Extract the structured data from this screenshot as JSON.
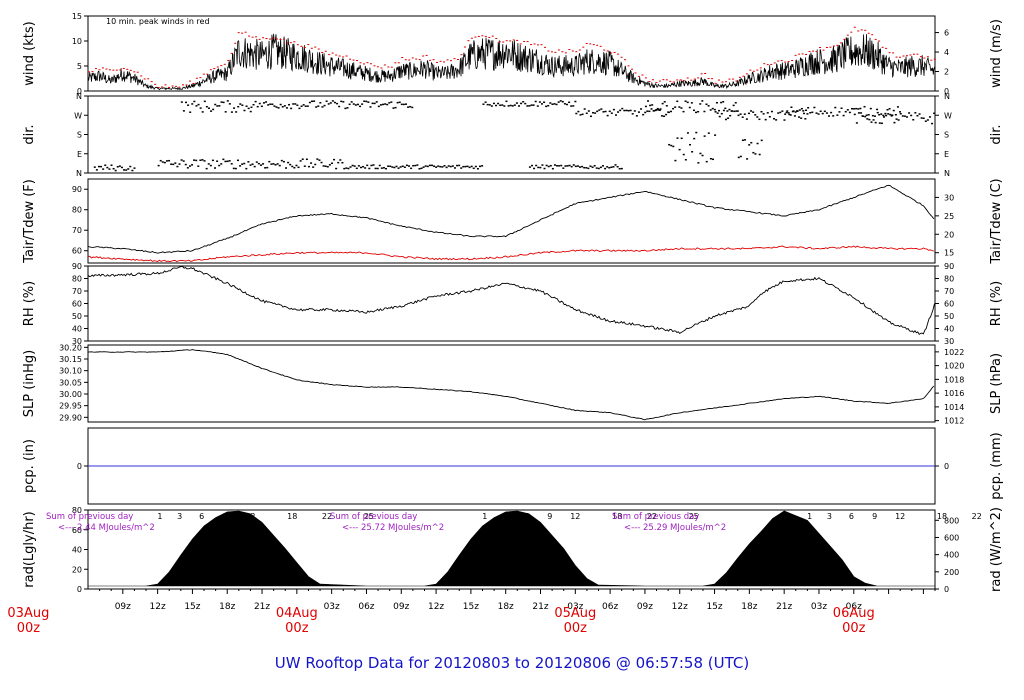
{
  "title": "UW Rooftop Data for 20120803  to  20120806 @ 06:57:58  (UTC)",
  "colors": {
    "title": "#1414c8",
    "date": "#e00000",
    "peak": "#e00000",
    "annot": "#a020c0",
    "pcp": "#3030e0",
    "dew": "#e00000"
  },
  "wind": {
    "ylabel_left": "wind (kts)",
    "ylabel_right": "wind (m/s)",
    "ticks_left": [
      "0",
      "5",
      "10",
      "15"
    ],
    "ticks_right": [
      "0",
      "2",
      "4",
      "6"
    ],
    "note": "10 min. peak winds in red"
  },
  "dir": {
    "ylabel_left": "dir.",
    "ylabel_right": "dir.",
    "ticks": [
      "N",
      "E",
      "S",
      "W",
      "N"
    ]
  },
  "temp": {
    "ylabel_left": "Tair/Tdew (F)",
    "ylabel_right": "Tair/Tdew (C)",
    "ticks_left": [
      "60",
      "70",
      "80",
      "90"
    ],
    "ticks_right": [
      "15",
      "20",
      "25",
      "30"
    ]
  },
  "rh": {
    "ylabel_left": "RH (%)",
    "ylabel_right": "RH (%)",
    "ticks": [
      "30",
      "40",
      "50",
      "60",
      "70",
      "80",
      "90"
    ]
  },
  "slp": {
    "ylabel_left": "SLP (inHg)",
    "ylabel_right": "SLP (hPa)",
    "ticks_left": [
      "29.90",
      "29.95",
      "30.00",
      "30.05",
      "30.10",
      "30.15",
      "30.20"
    ],
    "ticks_right": [
      "1012",
      "1014",
      "1016",
      "1018",
      "1020",
      "1022"
    ]
  },
  "pcp": {
    "ylabel_left": "pcp. (in)",
    "ylabel_right": "pcp. (mm)",
    "tick_left": "0",
    "tick_right": "0"
  },
  "rad": {
    "ylabel_left": "rad(Lgly/hr)",
    "ylabel_right": "rad (W/m^2)",
    "ticks_left": [
      "0",
      "20",
      "40",
      "60",
      "80"
    ],
    "ticks_right": [
      "0",
      "200",
      "400",
      "600",
      "800"
    ],
    "hour_labels": [
      "1",
      "3",
      "6",
      "9",
      "12",
      "18",
      "22",
      "25"
    ],
    "day1": {
      "line1": "Sum of previous day",
      "line2": "<--- 2.44 MJoules/m^2"
    },
    "day2": {
      "line1": "Sum of previous day",
      "line2": "<--- 25.72 MJoules/m^2"
    },
    "day3": {
      "line1": "Sum of previous day",
      "line2": "<--- 25.29 MJoules/m^2"
    }
  },
  "xaxis": {
    "hour_ticks": [
      "09z",
      "12z",
      "15z",
      "18z",
      "21z",
      "03z",
      "06z",
      "09z",
      "12z",
      "15z",
      "18z",
      "21z",
      "03z",
      "06z",
      "09z",
      "12z",
      "15z",
      "18z",
      "21z",
      "03z",
      "06z"
    ],
    "dates": [
      {
        "label": "03Aug",
        "sub": "00z"
      },
      {
        "label": "04Aug",
        "sub": "00z"
      },
      {
        "label": "05Aug",
        "sub": "00z"
      },
      {
        "label": "06Aug",
        "sub": "00z"
      }
    ]
  },
  "chart_data": [
    {
      "type": "line",
      "title": "",
      "ylabel": "wind (kts)",
      "y2label": "wind (m/s)",
      "ylim": [
        0,
        15
      ],
      "xlim_hours": [
        6.0,
        79.0
      ],
      "x_hours": [
        6,
        7,
        8,
        9,
        10,
        11,
        12,
        13,
        14,
        15,
        16,
        17,
        18,
        19,
        20,
        21,
        22,
        23,
        24,
        25,
        26,
        27,
        28,
        29,
        30,
        31,
        32,
        33,
        34,
        35,
        36,
        37,
        38,
        39,
        40,
        41,
        42,
        43,
        44,
        45,
        46,
        47,
        48,
        49,
        50,
        51,
        52,
        53,
        54,
        55,
        56,
        57,
        58,
        59,
        60,
        61,
        62,
        63,
        64,
        65,
        66,
        67,
        68,
        69,
        70,
        71,
        72,
        73,
        74,
        75,
        76,
        77,
        78,
        79
      ],
      "series": [
        {
          "name": "",
          "style": "black",
          "values": [
            2.5,
            3,
            2,
            3.5,
            2.5,
            1,
            0.5,
            0.5,
            0.5,
            1,
            2,
            3,
            3.5,
            8,
            7.5,
            7,
            8,
            7.5,
            7,
            6.5,
            5.5,
            5,
            4.5,
            4,
            3.5,
            3,
            3,
            4,
            4,
            4.5,
            3.5,
            3.5,
            4.5,
            7,
            7.5,
            7.5,
            8,
            7,
            6.5,
            6,
            5,
            5,
            5,
            6,
            6,
            5.5,
            4,
            2.5,
            1.5,
            1,
            1,
            1.5,
            1.5,
            2,
            1,
            1,
            1.5,
            2.5,
            3,
            4,
            4,
            4.5,
            5.5,
            6,
            6,
            7,
            8,
            8,
            7,
            5,
            4.5,
            5,
            5,
            4
          ]
        },
        {
          "name": "10 min. peak winds",
          "style": "red",
          "values": [
            4,
            4.5,
            4,
            5,
            4,
            2.5,
            1,
            1,
            1,
            2,
            3.5,
            5,
            6,
            12,
            11,
            10.5,
            11,
            10,
            9.5,
            9,
            8,
            7.5,
            7,
            6.5,
            5.5,
            5,
            5,
            6.5,
            6.5,
            7,
            6,
            6,
            7,
            11,
            11.5,
            10.5,
            10,
            10,
            9.5,
            9,
            8,
            8,
            8,
            9.5,
            9,
            8,
            6.5,
            4,
            2.5,
            2,
            2,
            2.5,
            2.5,
            3.5,
            2,
            2,
            2.5,
            4,
            5,
            6,
            6,
            7,
            8,
            8.5,
            9,
            10,
            12.5,
            12,
            10,
            7.5,
            7,
            7.5,
            7,
            6
          ]
        }
      ]
    },
    {
      "type": "scatter",
      "title": "",
      "ylabel": "dir.",
      "y_categories": [
        "N",
        "E",
        "S",
        "W",
        "N"
      ],
      "ylim_deg": [
        0,
        360
      ],
      "note": "wind direction scatter; dense bands near N (lower), W and N (upper) for the period"
    },
    {
      "type": "line",
      "title": "",
      "ylabel": "Tair/Tdew (F)",
      "y2label": "Tair/Tdew (C)",
      "ylim": [
        54,
        95
      ],
      "xlim_hours": [
        6.0,
        79.0
      ],
      "x_hours": [
        6,
        9,
        12,
        15,
        18,
        21,
        24,
        27,
        30,
        33,
        36,
        39,
        42,
        45,
        48,
        51,
        54,
        57,
        60,
        63,
        66,
        69,
        72,
        75,
        78,
        79
      ],
      "series": [
        {
          "name": "Tair",
          "style": "black",
          "values": [
            62,
            61,
            59,
            60,
            66,
            73,
            77,
            78,
            76,
            72,
            69,
            67,
            67,
            75,
            83,
            86,
            89,
            85,
            81,
            79,
            77,
            80,
            86,
            92,
            82,
            75
          ]
        },
        {
          "name": "Tdew",
          "style": "red",
          "values": [
            57,
            56,
            55,
            55,
            57,
            58,
            59,
            59,
            59,
            57,
            56,
            56,
            57,
            59,
            60,
            60,
            60,
            61,
            61,
            61,
            62,
            61,
            62,
            61,
            61,
            60
          ]
        }
      ]
    },
    {
      "type": "line",
      "title": "",
      "ylabel": "RH (%)",
      "ylim": [
        30,
        90
      ],
      "xlim_hours": [
        6.0,
        79.0
      ],
      "x_hours": [
        6,
        9,
        12,
        14,
        15,
        18,
        21,
        24,
        27,
        30,
        33,
        36,
        39,
        42,
        45,
        48,
        51,
        54,
        57,
        60,
        63,
        64,
        66,
        69,
        72,
        75,
        78,
        79
      ],
      "series": [
        {
          "name": "RH",
          "style": "black",
          "values": [
            82,
            83,
            84,
            89,
            88,
            76,
            62,
            55,
            55,
            53,
            58,
            66,
            70,
            76,
            70,
            55,
            46,
            42,
            37,
            50,
            58,
            68,
            78,
            80,
            65,
            45,
            35,
            60
          ]
        }
      ]
    },
    {
      "type": "line",
      "title": "",
      "ylabel": "SLP (inHg)",
      "y2label": "SLP (hPa)",
      "ylim": [
        29.88,
        30.21
      ],
      "xlim_hours": [
        6.0,
        79.0
      ],
      "x_hours": [
        6,
        9,
        12,
        15,
        18,
        21,
        24,
        27,
        30,
        33,
        36,
        39,
        42,
        45,
        48,
        51,
        54,
        57,
        60,
        63,
        66,
        69,
        72,
        75,
        78,
        79
      ],
      "series": [
        {
          "name": "SLP",
          "style": "black",
          "values": [
            30.18,
            30.18,
            30.18,
            30.19,
            30.17,
            30.11,
            30.06,
            30.04,
            30.03,
            30.03,
            30.02,
            30.01,
            29.99,
            29.96,
            29.93,
            29.92,
            29.89,
            29.92,
            29.94,
            29.96,
            29.98,
            29.99,
            29.97,
            29.96,
            29.98,
            30.04
          ]
        }
      ]
    },
    {
      "type": "line",
      "title": "",
      "ylabel": "pcp. (in)",
      "y2label": "pcp. (mm)",
      "ylim": [
        -1,
        1
      ],
      "series": [
        {
          "name": "pcp",
          "style": "blue",
          "values": [
            0,
            0
          ]
        }
      ]
    },
    {
      "type": "area",
      "title": "",
      "ylabel": "rad(Lgly/hr)",
      "y2label": "rad (W/m^2)",
      "ylim": [
        0,
        80
      ],
      "xlim_hours": [
        6.0,
        79.0
      ],
      "x_hours": [
        6,
        11,
        12,
        13,
        14,
        15,
        16,
        17,
        18,
        19,
        20,
        21,
        22,
        23,
        24,
        25,
        26,
        30,
        35,
        36,
        37,
        38,
        39,
        40,
        41,
        42,
        43,
        44,
        45,
        46,
        47,
        48,
        49,
        50,
        54,
        59,
        60,
        61,
        62,
        63,
        64,
        65,
        66,
        67,
        68,
        69,
        70,
        71,
        72,
        73,
        74,
        79
      ],
      "series": [
        {
          "name": "radiation",
          "style": "black",
          "values": [
            0,
            0,
            2,
            15,
            33,
            50,
            64,
            73,
            79,
            80,
            77,
            68,
            54,
            40,
            25,
            10,
            2,
            0,
            0,
            2,
            15,
            33,
            50,
            64,
            73,
            79,
            80,
            77,
            68,
            54,
            40,
            22,
            8,
            1,
            0,
            0,
            2,
            14,
            30,
            45,
            58,
            72,
            80,
            75,
            70,
            56,
            42,
            28,
            10,
            3,
            0,
            0
          ]
        }
      ]
    }
  ]
}
